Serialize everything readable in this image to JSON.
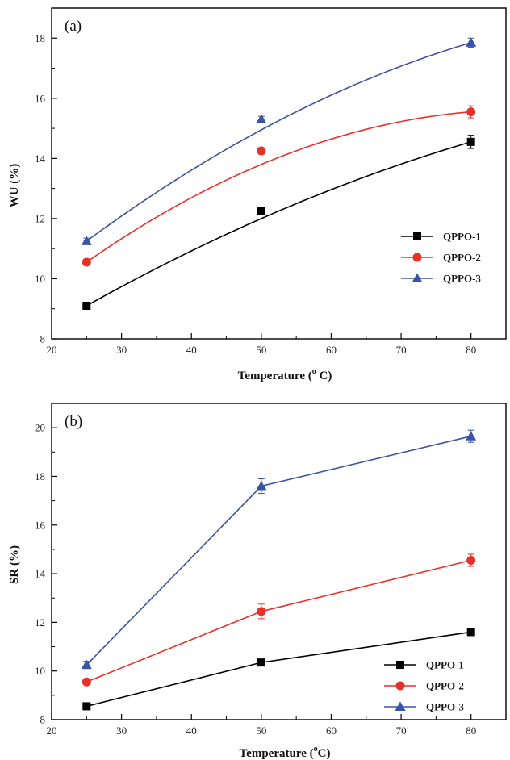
{
  "chart_data": [
    {
      "type": "scatter",
      "panel_label": "(a)",
      "xlabel": "Temperature (",
      "xlabel_sup": "o",
      "xlabel_unit": " C)",
      "ylabel": "WU (%)",
      "xlim": [
        20,
        85
      ],
      "ylim": [
        8,
        19
      ],
      "xticks": [
        "20",
        "30",
        "40",
        "50",
        "60",
        "70",
        "80"
      ],
      "yticks": [
        "8",
        "10",
        "12",
        "14",
        "16",
        "18"
      ],
      "line_style": "smooth-fit",
      "legend_position": "lower-right",
      "x": [
        25,
        50,
        80
      ],
      "series": [
        {
          "name": "QPPO-1",
          "values": [
            9.1,
            12.25,
            14.55
          ],
          "errors": [
            0.1,
            0.1,
            0.22
          ],
          "fit": [
            9.1,
            12.0,
            14.55
          ],
          "color": "#000000",
          "marker": "square"
        },
        {
          "name": "QPPO-2",
          "values": [
            10.55,
            14.25,
            15.55
          ],
          "errors": [
            0.1,
            0.1,
            0.2
          ],
          "fit": [
            10.55,
            13.8,
            15.55
          ],
          "color": "#e8302a",
          "marker": "circle"
        },
        {
          "name": "QPPO-3",
          "values": [
            11.25,
            15.3,
            17.85
          ],
          "errors": [
            0.1,
            0.1,
            0.15
          ],
          "fit": [
            11.25,
            14.95,
            17.85
          ],
          "color": "#3a54a4",
          "marker": "triangle"
        }
      ]
    },
    {
      "type": "line",
      "panel_label": "(b)",
      "xlabel": "Temperature (",
      "xlabel_sup": "o",
      "xlabel_unit": "C)",
      "ylabel": "SR (%)",
      "xlim": [
        20,
        85
      ],
      "ylim": [
        8,
        21
      ],
      "xticks": [
        "20",
        "30",
        "40",
        "50",
        "60",
        "70",
        "80"
      ],
      "yticks": [
        "8",
        "10",
        "12",
        "14",
        "16",
        "18",
        "20"
      ],
      "line_style": "straight",
      "legend_position": "lower-right",
      "x": [
        25,
        50,
        80
      ],
      "series": [
        {
          "name": "QPPO-1",
          "values": [
            8.55,
            10.35,
            11.6
          ],
          "errors": [
            0.05,
            0.1,
            0.1
          ],
          "color": "#000000",
          "marker": "square"
        },
        {
          "name": "QPPO-2",
          "values": [
            9.55,
            12.45,
            14.55
          ],
          "errors": [
            0.1,
            0.3,
            0.25
          ],
          "color": "#e8302a",
          "marker": "circle"
        },
        {
          "name": "QPPO-3",
          "values": [
            10.25,
            17.6,
            19.65
          ],
          "errors": [
            0.15,
            0.3,
            0.25
          ],
          "color": "#3a54a4",
          "marker": "triangle"
        }
      ]
    }
  ]
}
